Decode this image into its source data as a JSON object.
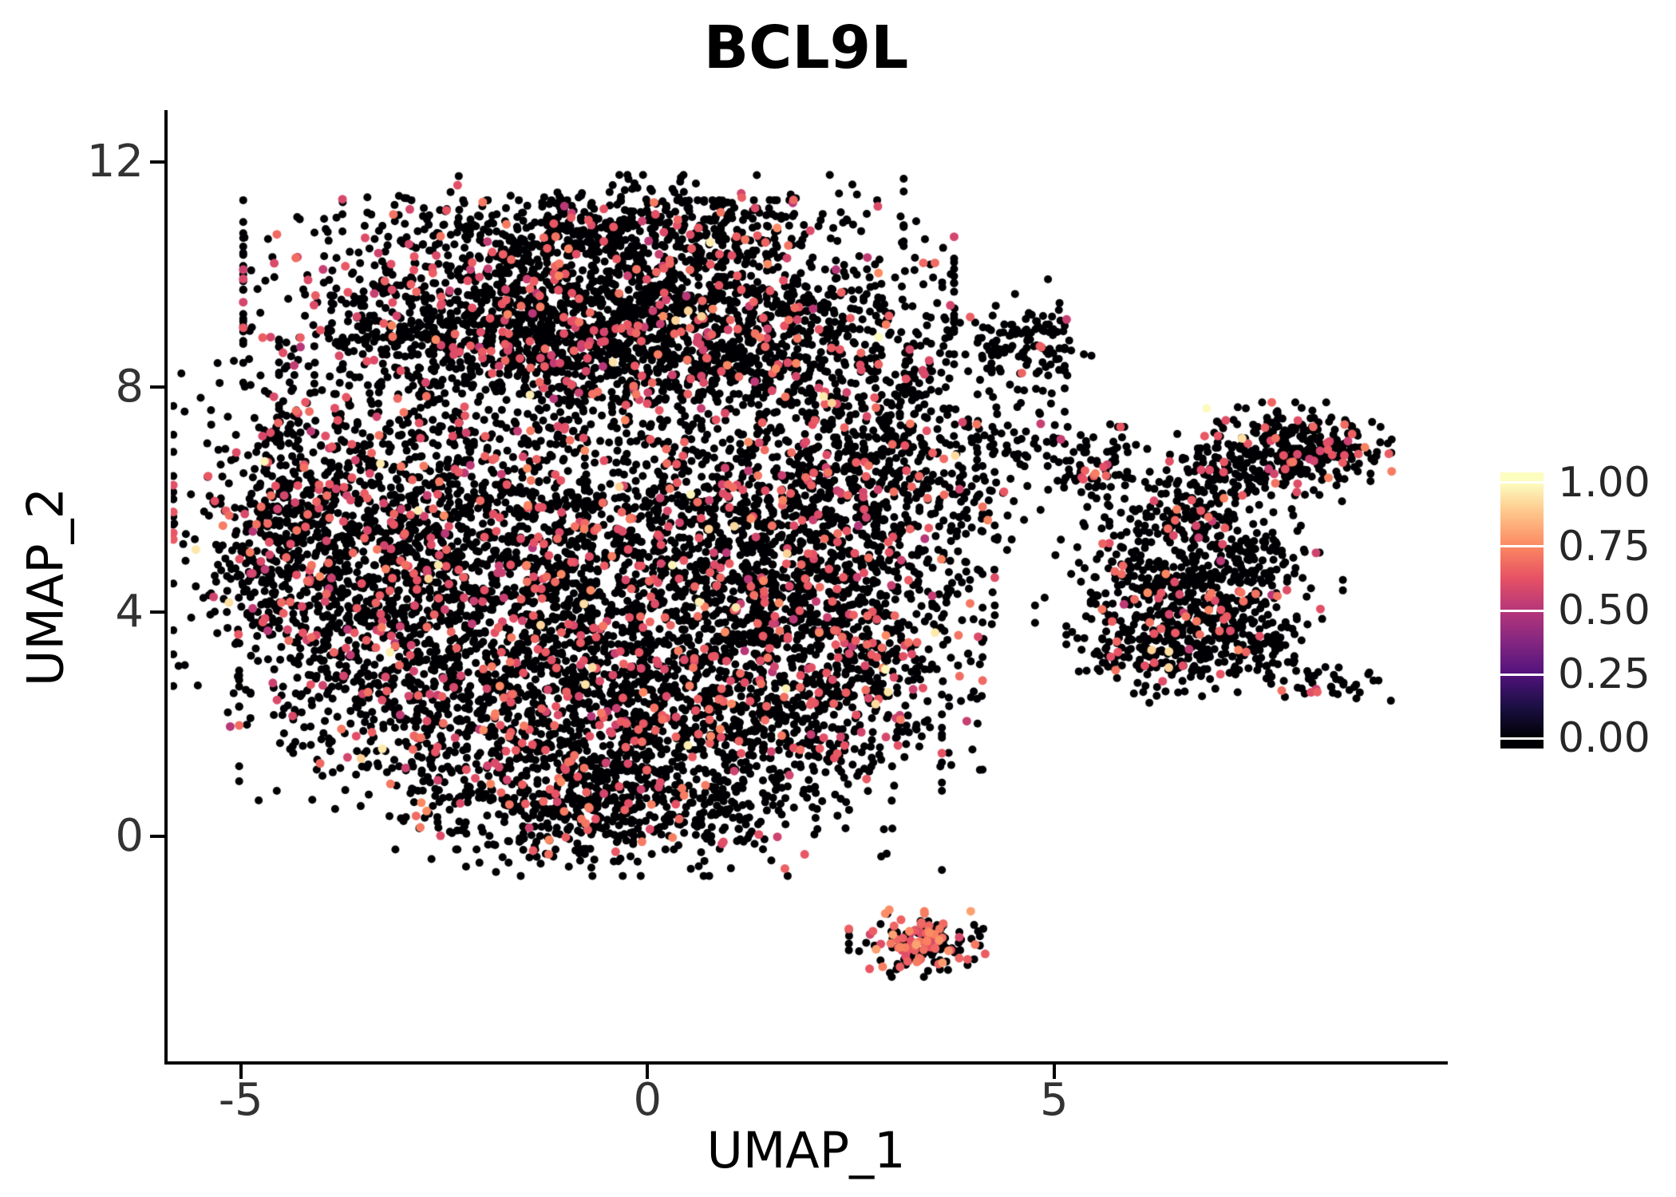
{
  "chart_data": {
    "type": "scatter",
    "title": "BCL9L",
    "xlabel": "UMAP_1",
    "ylabel": "UMAP_2",
    "xlim": [
      -5.9,
      9.8
    ],
    "ylim": [
      -4.0,
      12.9
    ],
    "xticks": [
      -5,
      0,
      5
    ],
    "xtick_labels": [
      "-5",
      "0",
      "5"
    ],
    "yticks": [
      0,
      4,
      8,
      12
    ],
    "ytick_labels": [
      "0",
      "4",
      "8",
      "12"
    ],
    "grid": false,
    "legend_position": "right",
    "point_radius_px": 5.0,
    "positive_point_radius_px": 5.5,
    "point_color_zero": "#000004",
    "colorbar": {
      "tick_values": [
        1.0,
        0.75,
        0.5,
        0.25,
        0.0
      ],
      "tick_labels": [
        "1.00",
        "0.75",
        "0.50",
        "0.25",
        "0.00"
      ],
      "vmin": 0,
      "vmax": 1,
      "extend": 0.04
    },
    "colormap": {
      "name": "magma",
      "stops": [
        [
          0.0,
          "#000004"
        ],
        [
          0.125,
          "#1c1044"
        ],
        [
          0.25,
          "#51127c"
        ],
        [
          0.375,
          "#832681"
        ],
        [
          0.5,
          "#b63679"
        ],
        [
          0.625,
          "#e65164"
        ],
        [
          0.75,
          "#fb8761"
        ],
        [
          0.875,
          "#fec287"
        ],
        [
          1.0,
          "#fcfdbf"
        ]
      ]
    },
    "expression": {
      "positive_mean": 0.63,
      "positive_sd": 0.055,
      "positive_min": 0.45,
      "positive_max": 0.82,
      "high_frac": 0.035,
      "high_min": 0.9,
      "high_max": 1.0
    },
    "seed": 7,
    "cluster_fields": [
      "center_x",
      "center_y",
      "sd_x",
      "sd_y",
      "n_points",
      "frac_expressing",
      "expr_mean_override"
    ],
    "clusters": [
      [
        -0.3,
        10.9,
        1.5,
        0.38,
        420,
        0.1
      ],
      [
        -0.6,
        9.6,
        1.9,
        0.75,
        1450,
        0.12
      ],
      [
        0.3,
        8.6,
        2.1,
        0.7,
        1150,
        0.1
      ],
      [
        -3.3,
        5.2,
        1.1,
        1.6,
        1250,
        0.12
      ],
      [
        -4.4,
        5.4,
        0.4,
        1.1,
        280,
        0.13
      ],
      [
        -1.2,
        4.9,
        1.6,
        1.6,
        1050,
        0.13
      ],
      [
        0.9,
        4.6,
        1.4,
        1.7,
        1150,
        0.13
      ],
      [
        2.2,
        5.4,
        0.9,
        1.3,
        650,
        0.12
      ],
      [
        -1.8,
        2.3,
        1.4,
        1.1,
        850,
        0.12
      ],
      [
        0.4,
        1.6,
        1.4,
        1.0,
        750,
        0.1
      ],
      [
        -0.9,
        0.5,
        0.9,
        0.45,
        300,
        0.1
      ],
      [
        2.9,
        6.9,
        0.5,
        0.6,
        200,
        0.1
      ],
      [
        2.5,
        3.0,
        0.7,
        0.8,
        330,
        0.12
      ],
      [
        3.9,
        5.9,
        0.35,
        0.5,
        50,
        0.08
      ],
      [
        4.7,
        8.85,
        0.33,
        0.28,
        90,
        0.06
      ],
      [
        4.6,
        6.9,
        0.5,
        0.55,
        75,
        0.08
      ],
      [
        8.0,
        6.9,
        0.5,
        0.36,
        320,
        0.1
      ],
      [
        7.1,
        6.5,
        0.35,
        0.3,
        90,
        0.08
      ],
      [
        5.6,
        6.6,
        0.3,
        0.3,
        70,
        0.08
      ],
      [
        6.6,
        5.6,
        0.4,
        0.4,
        140,
        0.1
      ],
      [
        5.8,
        4.6,
        0.45,
        0.55,
        90,
        0.08
      ],
      [
        6.6,
        4.4,
        0.5,
        0.5,
        180,
        0.1
      ],
      [
        7.4,
        4.7,
        0.5,
        0.55,
        170,
        0.1
      ],
      [
        6.3,
        3.3,
        0.5,
        0.4,
        160,
        0.1
      ],
      [
        7.3,
        3.4,
        0.45,
        0.4,
        150,
        0.1
      ],
      [
        8.45,
        2.75,
        0.3,
        0.18,
        30,
        0.08
      ],
      [
        3.35,
        -1.9,
        0.38,
        0.26,
        170,
        0.45,
        0.68
      ]
    ]
  }
}
